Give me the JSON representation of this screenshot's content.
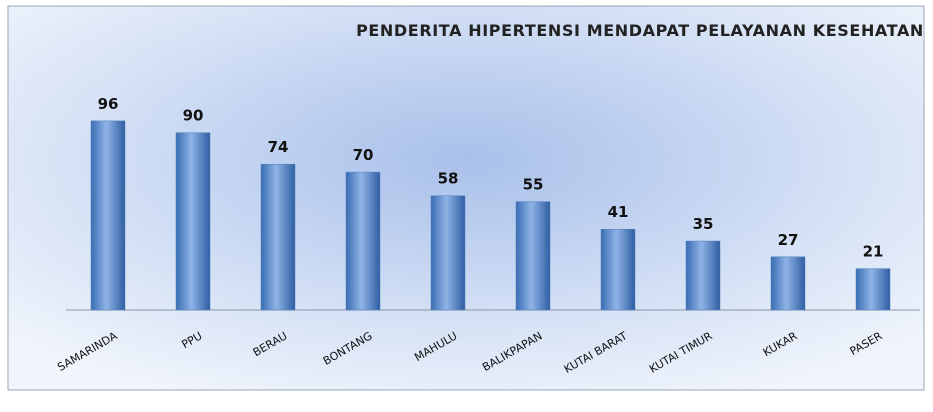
{
  "chart_data": {
    "type": "bar",
    "title": "PENDERITA HIPERTENSI MENDAPAT PELAYANAN KESEHATAN",
    "categories": [
      "SAMARINDA",
      "PPU",
      "BERAU",
      "BONTANG",
      "MAHULU",
      "BALIKPAPAN",
      "KUTAI BARAT",
      "KUTAI TIMUR",
      "KUKAR",
      "PASER"
    ],
    "values": [
      96,
      90,
      74,
      70,
      58,
      55,
      41,
      35,
      27,
      21
    ],
    "color": "#4f81bd",
    "ylim": [
      0,
      100
    ]
  }
}
